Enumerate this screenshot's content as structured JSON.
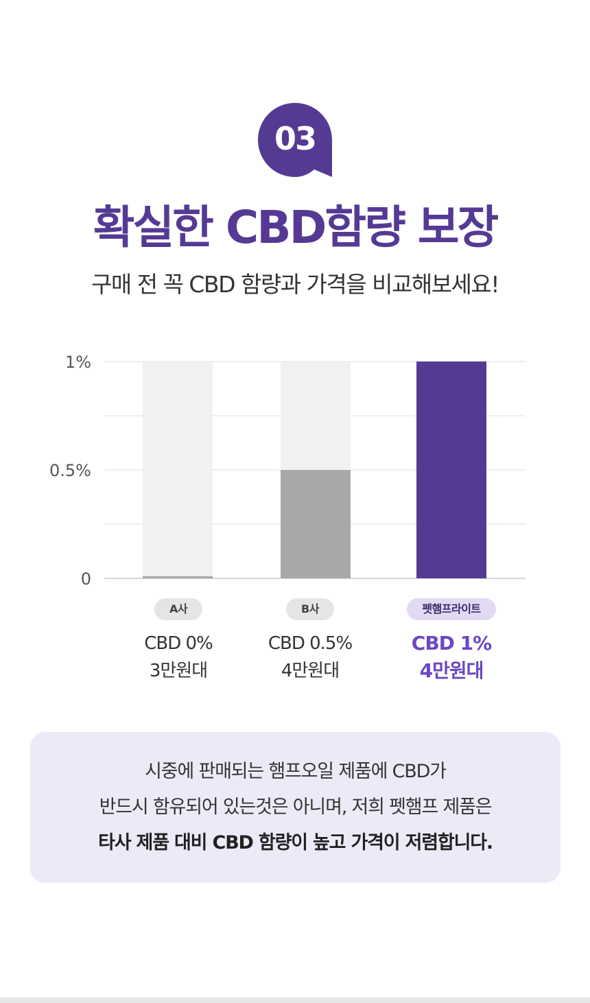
{
  "section": {
    "number": "03",
    "title": "확실한 CBD함량 보장",
    "subtitle": "구매 전 꼭 CBD 함량과 가격을 비교해보세요!"
  },
  "colors": {
    "brand": "#553a94",
    "bar_highlight": "#553a94",
    "bar_mid": "#a8a8a8",
    "bar_track": "#f1f1f1",
    "note_bg": "#edeaf8"
  },
  "chart_data": {
    "type": "bar",
    "categories": [
      "A사",
      "B사",
      "펫햄프라이트"
    ],
    "values": [
      0,
      0.5,
      1
    ],
    "value_labels": [
      "CBD 0%",
      "CBD 0.5%",
      "CBD 1%"
    ],
    "price_labels": [
      "3만원대",
      "4만원대",
      "4만원대"
    ],
    "highlight_index": 2,
    "ylim": [
      0,
      1
    ],
    "yticks": [
      {
        "value": 0,
        "label": "0"
      },
      {
        "value": 0.5,
        "label": "0.5%"
      },
      {
        "value": 1,
        "label": "1%"
      }
    ],
    "grid": true,
    "xlabel": "",
    "ylabel": ""
  },
  "note": {
    "line1": "시중에 판매되는 햄프오일 제품에 CBD가",
    "line2": "반드시 함유되어 있는것은 아니며, 저희 펫햄프 제품은",
    "line3": "타사 제품 대비 CBD 함량이 높고 가격이 저렴합니다."
  }
}
